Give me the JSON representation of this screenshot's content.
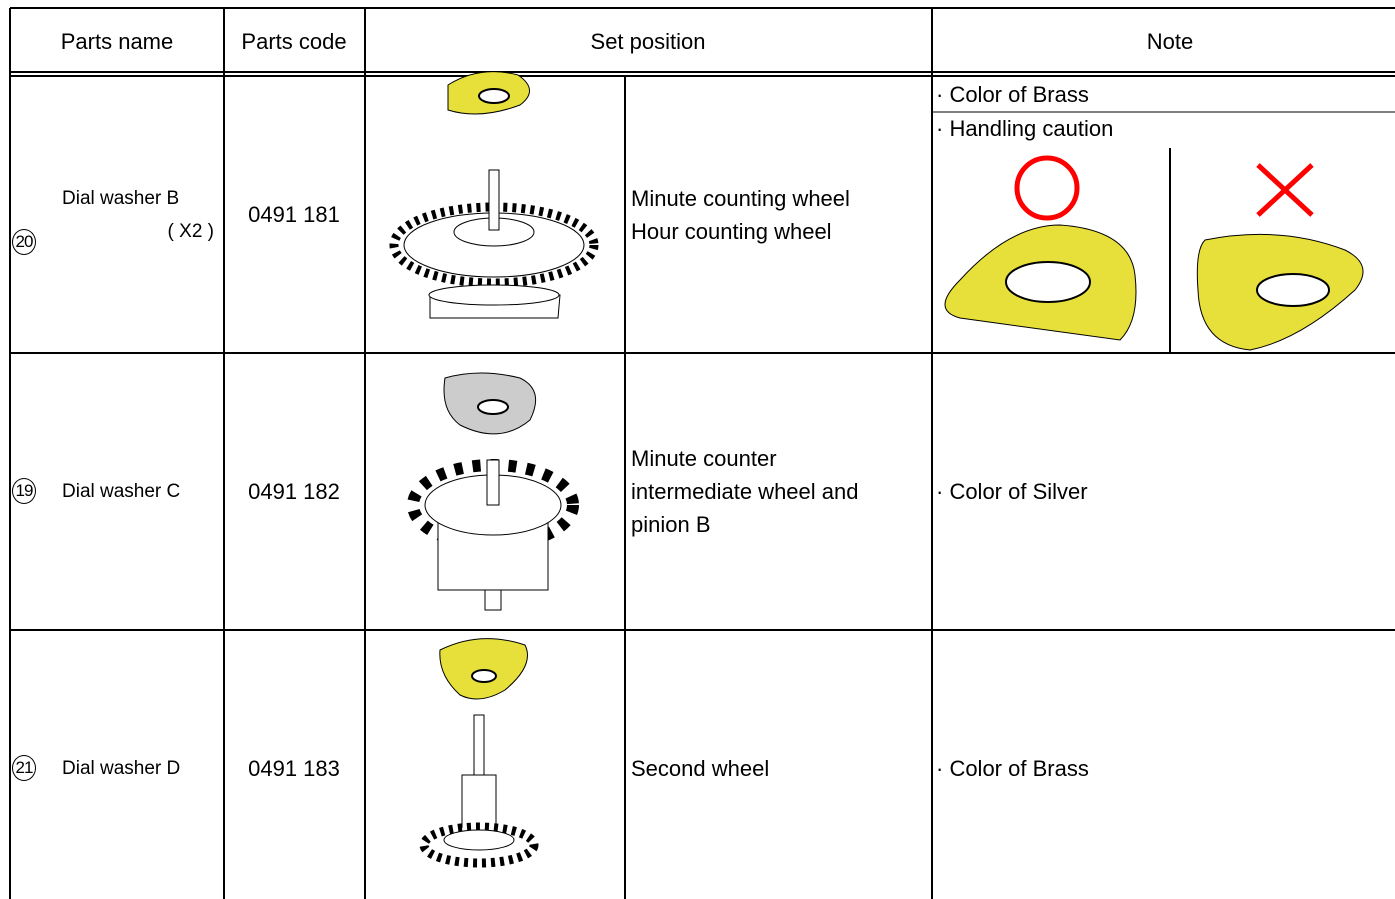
{
  "table": {
    "headers": [
      "Parts name",
      "Parts code",
      "Set position",
      "Note"
    ],
    "rows": [
      {
        "number": "20",
        "name": "Dial washer B",
        "quantity": "( X2 )",
        "code": "0491 181",
        "position": [
          "Minute counting wheel",
          "Hour counting wheel"
        ],
        "notes": [
          "· Color of Brass",
          "· Handling caution"
        ]
      },
      {
        "number": "19",
        "name": "Dial washer C",
        "code": "0491 182",
        "position": [
          "Minute counter",
          "intermediate wheel and",
          "pinion B"
        ],
        "notes": [
          "· Color of Silver"
        ]
      },
      {
        "number": "21",
        "name": "Dial washer D",
        "code": "0491 183",
        "position": [
          "Second wheel"
        ],
        "notes": [
          "· Color of Brass"
        ]
      }
    ]
  }
}
